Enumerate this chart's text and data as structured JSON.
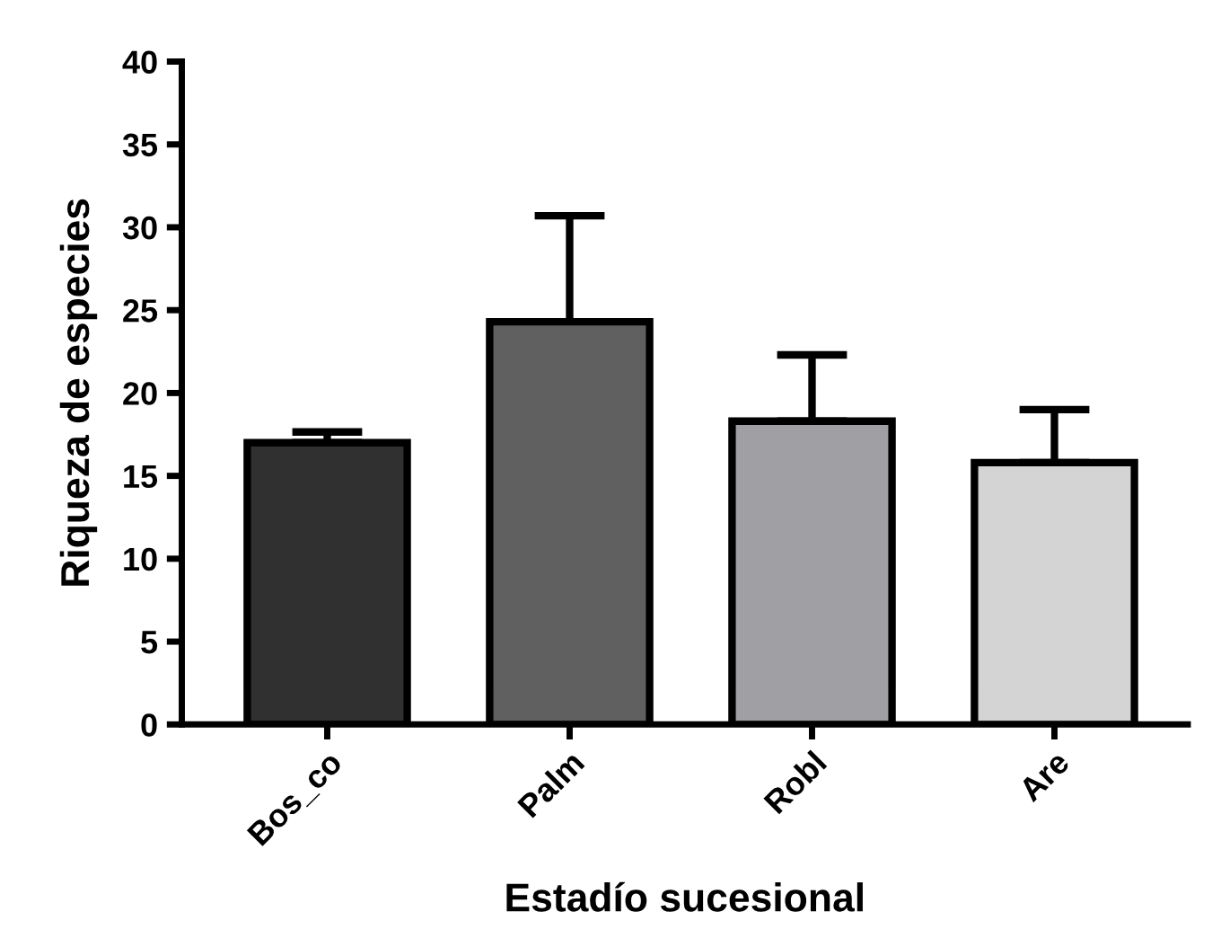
{
  "chart_data": {
    "type": "bar",
    "xlabel": "Estadío sucesional",
    "ylabel": "Riqueza de especies",
    "categories": [
      "Bos_co",
      "Palm",
      "Robl",
      "Are"
    ],
    "values": [
      17.0,
      24.3,
      18.3,
      15.8
    ],
    "colors": [
      "#303030",
      "#606060",
      "#a0a0a4",
      "#d4d4d4"
    ],
    "errors": [
      [
        17.0,
        17.65
      ],
      [
        24.3,
        30.7
      ],
      [
        18.3,
        22.3
      ],
      [
        15.8,
        19.0
      ]
    ],
    "ylim": [
      0,
      40
    ],
    "yticks": [
      0,
      5,
      10,
      15,
      20,
      25,
      30,
      35,
      40
    ],
    "grid": false,
    "legend": false
  }
}
